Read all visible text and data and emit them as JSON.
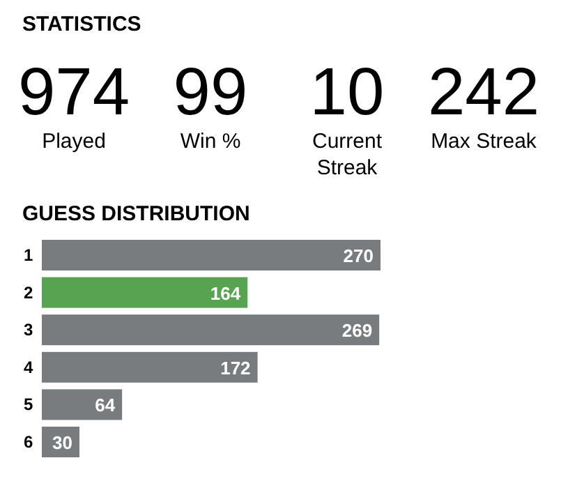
{
  "chart_data": [
    {
      "type": "other",
      "title": "STATISTICS",
      "categories": [
        "Played",
        "Win %",
        "Current Streak",
        "Max Streak"
      ],
      "values": [
        974,
        99,
        10,
        242
      ],
      "data_labels": true
    },
    {
      "type": "bar",
      "title": "GUESS DISTRIBUTION",
      "orientation": "horizontal",
      "categories": [
        "1",
        "2",
        "3",
        "4",
        "5",
        "6"
      ],
      "values": [
        270,
        164,
        269,
        172,
        64,
        30
      ],
      "colors": [
        "#787c7e",
        "#58a351",
        "#787c7e",
        "#787c7e",
        "#787c7e",
        "#787c7e"
      ],
      "data_labels": true
    }
  ]
}
